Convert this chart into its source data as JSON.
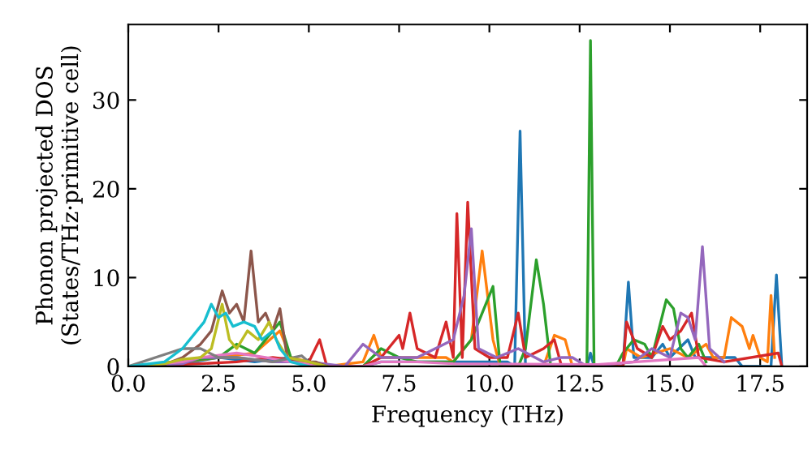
{
  "chart_data": {
    "type": "line",
    "xlabel": "Frequency (THz)",
    "ylabel": "Phonon projected DOS\n(States/THz·primitive cell)",
    "xlim": [
      0,
      18.8
    ],
    "ylim": [
      0,
      38.5
    ],
    "xticks": [
      {
        "value": 0,
        "label": "0.0"
      },
      {
        "value": 2.5,
        "label": "2.5"
      },
      {
        "value": 5,
        "label": "5.0"
      },
      {
        "value": 7.5,
        "label": "7.5"
      },
      {
        "value": 10,
        "label": "10.0"
      },
      {
        "value": 12.5,
        "label": "12.5"
      },
      {
        "value": 15,
        "label": "15.0"
      },
      {
        "value": 17.5,
        "label": "17.5"
      }
    ],
    "yticks": [
      0,
      10,
      20,
      30
    ],
    "grid": false,
    "legend": false,
    "marker": "none",
    "line_style": "solid",
    "series": [
      {
        "color": "#1f77b4",
        "x": [
          0,
          1.5,
          2.5,
          3.5,
          4.5,
          5,
          6.5,
          7,
          9,
          10.5,
          10.7,
          10.85,
          11.0,
          12.7,
          12.8,
          12.9,
          13.7,
          13.85,
          14.0,
          14.5,
          14.8,
          15,
          15.5,
          15.7,
          16.5,
          16.8,
          17,
          17.8,
          17.95,
          18.1
        ],
        "values": [
          0,
          0.3,
          1,
          0.5,
          1,
          0,
          0,
          0.5,
          0.5,
          0.5,
          0,
          26.5,
          0,
          0,
          1.5,
          0,
          0,
          9.5,
          1,
          1,
          2.5,
          1,
          3,
          1,
          1,
          1,
          0,
          0,
          10.3,
          0
        ]
      },
      {
        "color": "#ff7f0e",
        "x": [
          0,
          1.5,
          2.5,
          3.5,
          4.2,
          4.5,
          5,
          5.5,
          6.5,
          6.8,
          7,
          8,
          8.8,
          9,
          9.5,
          9.8,
          10.1,
          10.3,
          11.5,
          11.8,
          12.1,
          12.3,
          13.7,
          13.8,
          14.2,
          15,
          15.5,
          16,
          16.2,
          16.5,
          16.7,
          17,
          17.2,
          17.3,
          17.5,
          17.7,
          17.8,
          17.9
        ],
        "values": [
          0,
          0.5,
          1,
          1.5,
          4,
          1,
          0.5,
          0,
          0.5,
          3.5,
          1,
          1,
          1,
          0.5,
          3,
          13,
          3,
          0,
          0,
          3.5,
          3,
          0,
          0,
          2,
          1,
          2,
          1,
          2.5,
          1,
          1,
          5.5,
          4.5,
          2,
          3.5,
          1,
          0.5,
          8,
          1
        ]
      },
      {
        "color": "#2ca02c",
        "x": [
          0,
          2.5,
          3,
          3.5,
          4,
          4.2,
          4.5,
          5,
          6.5,
          7,
          7.5,
          8,
          9,
          9.5,
          10.1,
          10.3,
          10.8,
          11.0,
          11.3,
          11.5,
          11.7,
          12.7,
          12.8,
          12.9,
          13.5,
          13.7,
          14,
          14.3,
          14.5,
          14.9,
          15.1,
          15.3,
          15.5,
          15.8,
          16
        ],
        "values": [
          0,
          1,
          2.5,
          1.5,
          4,
          5,
          1,
          0,
          0,
          2,
          1,
          0.5,
          0.5,
          3,
          9,
          0,
          0,
          2,
          12,
          7,
          0,
          0,
          36.7,
          0,
          0,
          1.5,
          3,
          2.5,
          1,
          7.5,
          6.5,
          2,
          1,
          2.5,
          0.5
        ]
      },
      {
        "color": "#d62728",
        "x": [
          0,
          2,
          3,
          4,
          5,
          5.3,
          5.5,
          6.5,
          7,
          7.3,
          7.5,
          7.6,
          7.8,
          8,
          8.5,
          8.8,
          9,
          9.1,
          9.25,
          9.4,
          9.6,
          10,
          10.5,
          10.8,
          11,
          11.5,
          11.8,
          12,
          13.7,
          13.8,
          14.1,
          14.5,
          14.8,
          15,
          15.3,
          15.6,
          15.8,
          16.5,
          18,
          18.1
        ],
        "values": [
          0,
          0.3,
          0.5,
          1,
          0.5,
          3,
          0,
          0,
          1,
          2.5,
          3.5,
          2,
          6,
          2,
          1,
          5,
          1,
          17.2,
          1,
          18.5,
          2,
          1,
          1,
          6,
          1,
          2,
          3,
          0,
          0,
          5,
          2,
          1,
          4.5,
          3,
          4,
          6,
          1,
          0.5,
          1.5,
          0
        ]
      },
      {
        "color": "#9467bd",
        "x": [
          0,
          1.5,
          2,
          3,
          4,
          5,
          6,
          6.5,
          7,
          8,
          8.5,
          9,
          9.3,
          9.5,
          9.7,
          10.2,
          10.5,
          10.8,
          11.5,
          12,
          12.3,
          12.7,
          14,
          14.5,
          15,
          15.3,
          15.5,
          15.7,
          15.9,
          16.1,
          16.5
        ],
        "values": [
          0,
          0.3,
          1,
          1,
          0.5,
          0.5,
          0,
          2.5,
          1,
          1,
          2,
          3,
          8,
          15.5,
          2,
          1,
          1.5,
          2,
          0.5,
          1,
          1,
          0,
          0.5,
          2,
          1,
          6,
          5.5,
          3,
          13.5,
          2,
          0.5
        ]
      },
      {
        "color": "#8c564b",
        "x": [
          0,
          1,
          1.5,
          2,
          2.3,
          2.6,
          2.8,
          3,
          3.2,
          3.4,
          3.6,
          3.8,
          4,
          4.2,
          4.4,
          4.8,
          5.2,
          5.5
        ],
        "values": [
          0,
          0.2,
          1,
          2.5,
          4,
          8.5,
          6,
          7,
          5,
          13,
          5,
          6,
          4,
          6.5,
          1,
          0.5,
          0.5,
          0
        ]
      },
      {
        "color": "#e377c2",
        "x": [
          0,
          1.5,
          2,
          3,
          3.8,
          4.5,
          5.5,
          6.5,
          7,
          8,
          9,
          13,
          15.8,
          16
        ],
        "values": [
          0,
          0.5,
          1,
          1.5,
          1,
          0.5,
          0,
          0,
          0.5,
          0.5,
          0.3,
          0.2,
          1,
          0
        ]
      },
      {
        "color": "#7f7f7f",
        "x": [
          0,
          1.5,
          2,
          2.5,
          3,
          4,
          4.8,
          5,
          5.5
        ],
        "values": [
          0,
          2,
          2,
          1,
          1,
          0.5,
          1.2,
          0.5,
          0
        ]
      },
      {
        "color": "#bcbd22",
        "x": [
          0,
          1,
          1.5,
          2,
          2.3,
          2.6,
          2.8,
          3,
          3.3,
          3.6,
          3.9,
          4.1,
          4.4,
          5,
          5.5
        ],
        "values": [
          0,
          0.3,
          0.8,
          1,
          2,
          7,
          3,
          2,
          4,
          3,
          5,
          3,
          1,
          0.5,
          0
        ]
      },
      {
        "color": "#17becf",
        "x": [
          0,
          1,
          1.5,
          1.8,
          2.1,
          2.3,
          2.5,
          2.7,
          2.9,
          3.2,
          3.5,
          3.7,
          4,
          4.2,
          4.5,
          5
        ],
        "values": [
          0,
          0.5,
          2,
          3.5,
          5,
          7,
          5.5,
          6,
          4.5,
          5,
          4.5,
          3,
          4,
          2,
          0.5,
          0
        ]
      }
    ]
  }
}
